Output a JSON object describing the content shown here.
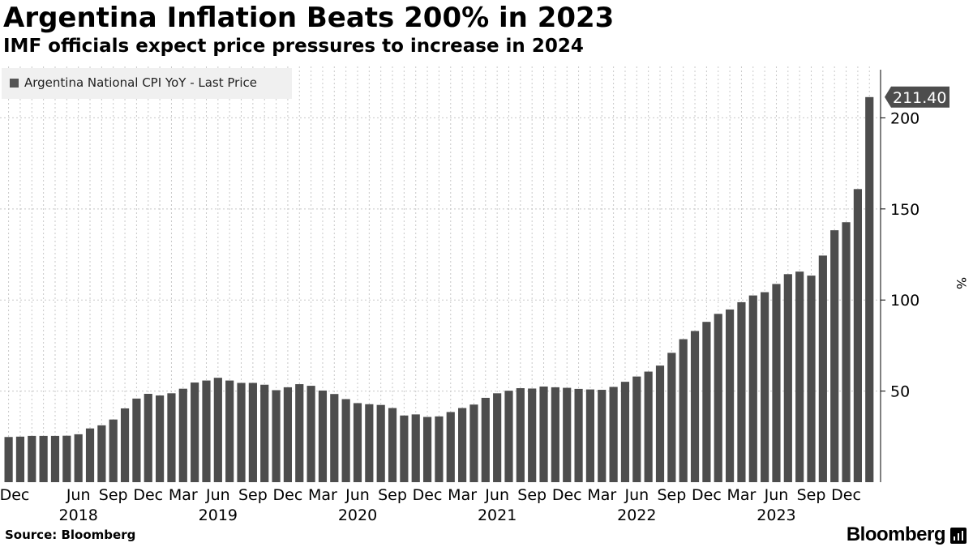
{
  "title": "Argentina Inflation Beats 200% in 2023",
  "subtitle": "IMF officials expect price pressures to increase in 2024",
  "source": "Source: Bloomberg",
  "brand": "Bloomberg",
  "colors": {
    "bar": "#4d4d4d",
    "grid": "#c8c8c8",
    "callout": "#4d4d4d",
    "legend_bg": "#f0f0f0"
  },
  "chart_data": {
    "type": "bar",
    "title": "Argentina Inflation Beats 200% in 2023",
    "subtitle": "IMF officials expect price pressures to increase in 2024",
    "xlabel": "",
    "ylabel": "%",
    "ylim": [
      0,
      230
    ],
    "yticks": [
      50,
      100,
      150,
      200
    ],
    "legend": "Argentina National CPI YoY - Last Price",
    "legend_position": "top-left",
    "grid": true,
    "last_value_label": "211.40",
    "x_tick_labels": [
      {
        "index": 0,
        "month": "Dec",
        "year": ""
      },
      {
        "index": 6,
        "month": "Jun",
        "year": "2018"
      },
      {
        "index": 9,
        "month": "Sep",
        "year": ""
      },
      {
        "index": 12,
        "month": "Dec",
        "year": ""
      },
      {
        "index": 15,
        "month": "Mar",
        "year": ""
      },
      {
        "index": 18,
        "month": "Jun",
        "year": "2019"
      },
      {
        "index": 21,
        "month": "Sep",
        "year": ""
      },
      {
        "index": 24,
        "month": "Dec",
        "year": ""
      },
      {
        "index": 27,
        "month": "Mar",
        "year": ""
      },
      {
        "index": 30,
        "month": "Jun",
        "year": "2020"
      },
      {
        "index": 33,
        "month": "Sep",
        "year": ""
      },
      {
        "index": 36,
        "month": "Dec",
        "year": ""
      },
      {
        "index": 39,
        "month": "Mar",
        "year": ""
      },
      {
        "index": 42,
        "month": "Jun",
        "year": "2021"
      },
      {
        "index": 45,
        "month": "Sep",
        "year": ""
      },
      {
        "index": 48,
        "month": "Dec",
        "year": ""
      },
      {
        "index": 51,
        "month": "Mar",
        "year": ""
      },
      {
        "index": 54,
        "month": "Jun",
        "year": "2022"
      },
      {
        "index": 57,
        "month": "Sep",
        "year": ""
      },
      {
        "index": 60,
        "month": "Dec",
        "year": ""
      },
      {
        "index": 63,
        "month": "Mar",
        "year": ""
      },
      {
        "index": 66,
        "month": "Jun",
        "year": "2023"
      },
      {
        "index": 69,
        "month": "Sep",
        "year": ""
      },
      {
        "index": 72,
        "month": "Dec",
        "year": ""
      }
    ],
    "values": [
      24.8,
      25.0,
      25.4,
      25.4,
      25.4,
      25.5,
      26.3,
      29.5,
      31.2,
      34.4,
      40.5,
      45.9,
      48.5,
      47.6,
      48.8,
      51.3,
      54.7,
      55.8,
      57.3,
      55.8,
      54.5,
      54.5,
      53.5,
      50.5,
      52.1,
      53.8,
      52.9,
      50.3,
      48.4,
      45.6,
      43.4,
      42.8,
      42.4,
      40.7,
      36.6,
      37.2,
      35.8,
      36.1,
      38.5,
      40.7,
      42.6,
      46.3,
      48.8,
      50.2,
      51.6,
      51.4,
      52.5,
      52.1,
      51.8,
      51.2,
      50.9,
      50.7,
      52.3,
      55.1,
      58.0,
      60.7,
      64.0,
      71.0,
      78.5,
      83.0,
      88.0,
      92.4,
      94.8,
      98.8,
      102.5,
      104.3,
      108.8,
      114.2,
      115.6,
      113.4,
      124.4,
      138.3,
      142.7,
      160.9,
      211.4
    ]
  }
}
